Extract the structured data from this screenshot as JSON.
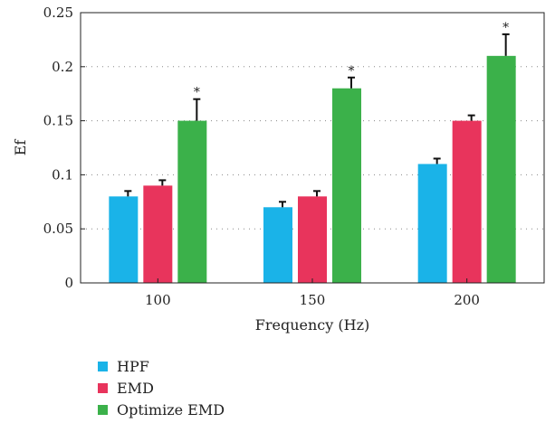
{
  "chart_data": {
    "type": "bar",
    "categories": [
      "100",
      "150",
      "200"
    ],
    "series": [
      {
        "name": "HPF",
        "values": [
          0.08,
          0.07,
          0.11
        ],
        "errors": [
          0.005,
          0.005,
          0.005
        ],
        "color": "#1ab3e8"
      },
      {
        "name": "EMD",
        "values": [
          0.09,
          0.08,
          0.15
        ],
        "errors": [
          0.005,
          0.005,
          0.005
        ],
        "color": "#e8345c"
      },
      {
        "name": "Optimize EMD",
        "values": [
          0.15,
          0.18,
          0.21
        ],
        "errors": [
          0.02,
          0.01,
          0.02
        ],
        "color": "#3bb14a",
        "significance": [
          "*",
          "*",
          "*"
        ]
      }
    ],
    "xlabel": "Frequency (Hz)",
    "ylabel": "Ef",
    "ylim": [
      0,
      0.25
    ],
    "yticks": [
      "0",
      "0.05",
      "0.1",
      "0.15",
      "0.2",
      "0.25"
    ],
    "grid": "horizontal-dotted",
    "legend_position": "bottom-left"
  }
}
